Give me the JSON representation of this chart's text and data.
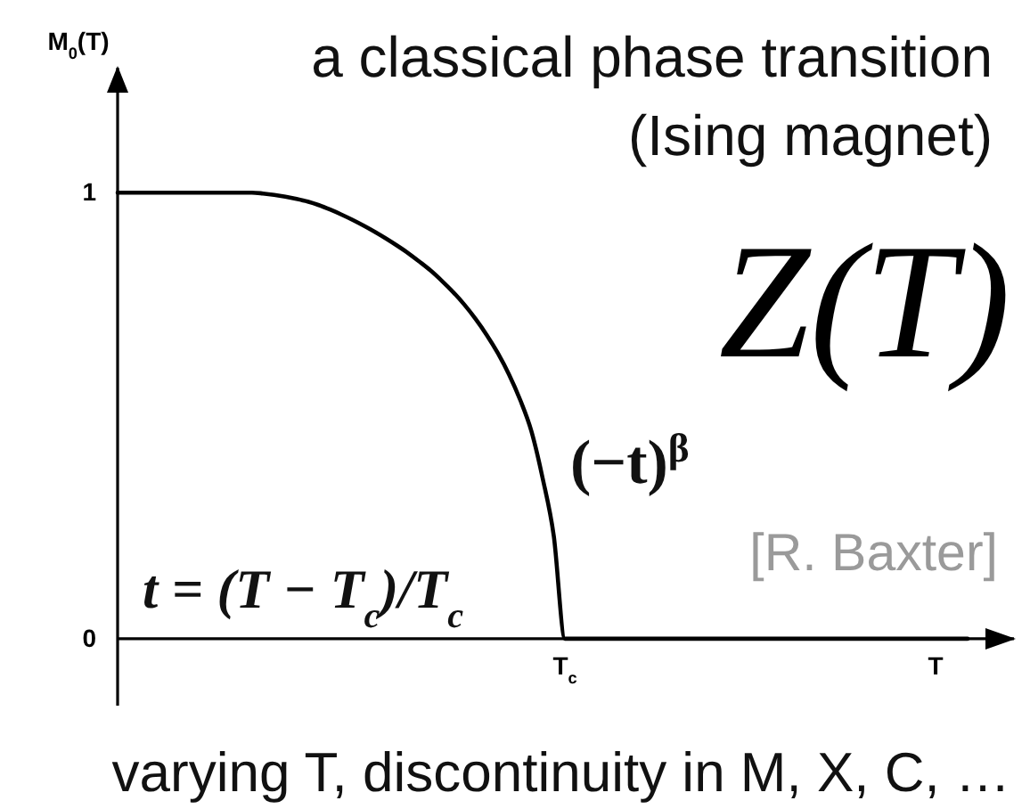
{
  "chart_data": {
    "type": "line",
    "title": "a classical phase transition",
    "subtitle": "(Ising magnet)",
    "xlabel": "T",
    "ylabel": "M$_{0}$(T)",
    "categories": [
      null,
      null,
      null,
      null,
      null,
      null,
      null,
      null,
      null,
      null,
      null,
      null,
      null,
      null,
      null,
      null,
      null,
      null,
      null,
      null,
      null,
      null,
      null,
      null,
      null,
      null,
      null,
      null,
      null,
      null,
      null,
      null,
      null,
      null,
      null,
      null,
      null,
      null,
      null,
      null,
      "T$_{c}$",
      null,
      null,
      null,
      null,
      null,
      null,
      null,
      null,
      null,
      null,
      null,
      null,
      null,
      null,
      null,
      null,
      null,
      null,
      null,
      null,
      null,
      null,
      null,
      null,
      null,
      null,
      null,
      null,
      null,
      null,
      null,
      null,
      null,
      null,
      null,
      null
    ],
    "series": [
      {
        "color": "#000000",
        "values": [
          1,
          1,
          1,
          1,
          1,
          1,
          1,
          1,
          1,
          1,
          1,
          1,
          1,
          0.998,
          0.995,
          0.991,
          0.986,
          0.98,
          0.972,
          0.962,
          0.951,
          0.939,
          0.926,
          0.912,
          0.897,
          0.881,
          0.864,
          0.845,
          0.825,
          0.802,
          0.777,
          0.749,
          0.717,
          0.681,
          0.64,
          0.592,
          0.535,
          0.465,
          0.36,
          0.23,
          0,
          0,
          0,
          0,
          0,
          0,
          0,
          0,
          0,
          0,
          0,
          0,
          0,
          0,
          0,
          0,
          0,
          0,
          0,
          0,
          0,
          0,
          0,
          0,
          0,
          0,
          0,
          0,
          0,
          0,
          0,
          0,
          0,
          0,
          0,
          0,
          0
        ]
      }
    ],
    "ylim": [
      -0.15,
      1.28
    ],
    "yticks": [
      0,
      1
    ],
    "annotations": [
      "Z(T)",
      "(−t)$^{β}$",
      "t = (T − T$_{c}$)/T$_{c}$",
      "[R. Baxter]",
      "varying T, discontinuity in M, X, C, …"
    ]
  }
}
